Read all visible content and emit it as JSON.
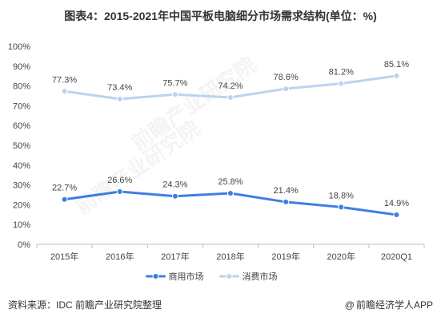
{
  "title": "图表4：2015-2021年中国平板电脑细分市场需求结构(单位：%)",
  "source": "资料来源：IDC 前瞻产业研究院整理",
  "brand": {
    "mark": "@",
    "label": "前瞻经济学人APP"
  },
  "watermark": "前瞻产业研究院",
  "chart_data": {
    "type": "line",
    "title": "图表4：2015-2021年中国平板电脑细分市场需求结构(单位：%)",
    "xlabel": "",
    "ylabel": "",
    "ylim": [
      0,
      100
    ],
    "yticks": [
      "0%",
      "10%",
      "20%",
      "30%",
      "40%",
      "50%",
      "60%",
      "70%",
      "80%",
      "90%",
      "100%"
    ],
    "categories": [
      "2015年",
      "2016年",
      "2017年",
      "2018年",
      "2019年",
      "2020年",
      "2020Q1"
    ],
    "series": [
      {
        "name": "商用市场",
        "color": "#3d7fe0",
        "values": [
          22.7,
          26.6,
          24.3,
          25.8,
          21.4,
          18.8,
          14.9
        ],
        "labels": [
          "22.7%",
          "26.6%",
          "24.3%",
          "25.8%",
          "21.4%",
          "18.8%",
          "14.9%"
        ]
      },
      {
        "name": "消费市场",
        "color": "#bcd3f0",
        "values": [
          77.3,
          73.4,
          75.7,
          74.2,
          78.6,
          81.2,
          85.1
        ],
        "labels": [
          "77.3%",
          "73.4%",
          "75.7%",
          "74.2%",
          "78.6%",
          "81.2%",
          "85.1%"
        ]
      }
    ],
    "grid": false,
    "legend": "bottom"
  }
}
